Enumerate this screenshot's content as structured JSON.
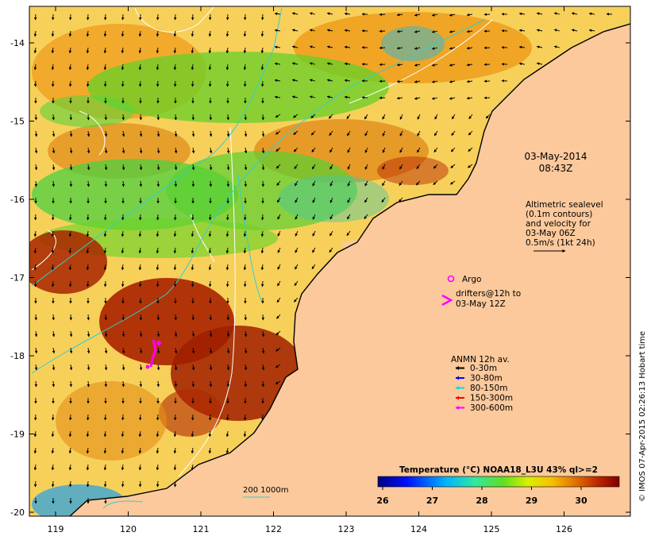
{
  "map": {
    "lat_ticks": [
      "-14",
      "-15",
      "-16",
      "-17",
      "-18",
      "-19",
      "-20"
    ],
    "lon_ticks": [
      "119",
      "120",
      "121",
      "122",
      "123",
      "124",
      "125",
      "126"
    ],
    "date": "03-May-2014",
    "time": "08:43Z",
    "altimetry_lines": [
      "Altimetric sealevel",
      "(0.1m contours)",
      "and velocity for",
      "03-May 06Z",
      "0.5m/s (1kt 24h)"
    ],
    "argo_label": "Argo",
    "drifters_lines": [
      "drifters@12h to",
      "03-May 12Z"
    ],
    "anmn_title": "ANMN 12h av.",
    "anmn_items": [
      {
        "label": "0-30m",
        "color": "#000000"
      },
      {
        "label": "30-80m",
        "color": "#0000ff"
      },
      {
        "label": "80-150m",
        "color": "#00e0e0"
      },
      {
        "label": "150-300m",
        "color": "#ff0000"
      },
      {
        "label": "300-600m",
        "color": "#ff00ff"
      }
    ],
    "depth_contours_label": "200  1000m",
    "colorbar_title": "Temperature (°C) NOAA18_L3U 43% ql>=2",
    "colorbar_ticks": [
      "26",
      "27",
      "28",
      "29",
      "30"
    ],
    "credit": "© IMOS 07-Apr-2015 02:26:13 Hobart time"
  }
}
